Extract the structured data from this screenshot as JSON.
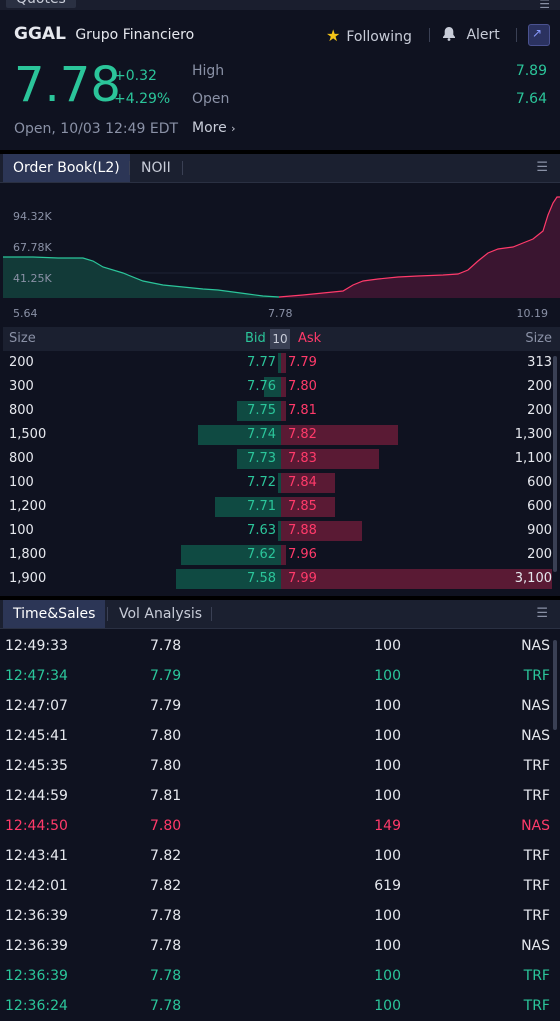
{
  "top_tab": "Quotes",
  "quote": {
    "ticker": "GGAL",
    "name": "Grupo Financiero",
    "following_label": "Following",
    "alert_label": "Alert",
    "price": "7.78",
    "change": "+0.32",
    "change_pct": "+4.29%",
    "status": "Open, 10/03 12:49 EDT",
    "high_label": "High",
    "high_value": "7.89",
    "open_label": "Open",
    "open_value": "7.64",
    "more_label": "More"
  },
  "order_book": {
    "tabs": [
      "Order Book(L2)",
      "NOII"
    ],
    "depth_chart": {
      "y_labels": [
        "94.32K",
        "67.78K",
        "41.25K"
      ],
      "x_labels": [
        "5.64",
        "7.78",
        "10.19"
      ]
    },
    "header": {
      "size_left": "Size",
      "bid": "Bid",
      "depth": "10",
      "ask": "Ask",
      "size_right": "Size"
    },
    "rows": [
      {
        "bid_size": "200",
        "bid": "7.77",
        "ask": "7.79",
        "ask_size": "313",
        "bid_frac": 0.02,
        "ask_frac": 0.02
      },
      {
        "bid_size": "300",
        "bid": "7.76",
        "ask": "7.80",
        "ask_size": "200",
        "bid_frac": 0.1,
        "ask_frac": 0.02
      },
      {
        "bid_size": "800",
        "bid": "7.75",
        "ask": "7.81",
        "ask_size": "200",
        "bid_frac": 0.26,
        "ask_frac": 0.02
      },
      {
        "bid_size": "1,500",
        "bid": "7.74",
        "ask": "7.82",
        "ask_size": "1,300",
        "bid_frac": 0.49,
        "ask_frac": 0.43
      },
      {
        "bid_size": "800",
        "bid": "7.73",
        "ask": "7.83",
        "ask_size": "1,100",
        "bid_frac": 0.26,
        "ask_frac": 0.36
      },
      {
        "bid_size": "100",
        "bid": "7.72",
        "ask": "7.84",
        "ask_size": "600",
        "bid_frac": 0.02,
        "ask_frac": 0.2
      },
      {
        "bid_size": "1,200",
        "bid": "7.71",
        "ask": "7.85",
        "ask_size": "600",
        "bid_frac": 0.39,
        "ask_frac": 0.2
      },
      {
        "bid_size": "100",
        "bid": "7.63",
        "ask": "7.88",
        "ask_size": "900",
        "bid_frac": 0.02,
        "ask_frac": 0.3
      },
      {
        "bid_size": "1,800",
        "bid": "7.62",
        "ask": "7.96",
        "ask_size": "200",
        "bid_frac": 0.59,
        "ask_frac": 0.02
      },
      {
        "bid_size": "1,900",
        "bid": "7.58",
        "ask": "7.99",
        "ask_size": "3,100",
        "bid_frac": 0.62,
        "ask_frac": 1.0
      }
    ]
  },
  "time_sales": {
    "tabs": [
      "Time&Sales",
      "Vol Analysis"
    ],
    "rows": [
      {
        "time": "12:49:33",
        "price": "7.78",
        "vol": "100",
        "exch": "NAS",
        "dir": "neutral"
      },
      {
        "time": "12:47:34",
        "price": "7.79",
        "vol": "100",
        "exch": "TRF",
        "dir": "up"
      },
      {
        "time": "12:47:07",
        "price": "7.79",
        "vol": "100",
        "exch": "NAS",
        "dir": "neutral"
      },
      {
        "time": "12:45:41",
        "price": "7.80",
        "vol": "100",
        "exch": "NAS",
        "dir": "neutral"
      },
      {
        "time": "12:45:35",
        "price": "7.80",
        "vol": "100",
        "exch": "TRF",
        "dir": "neutral"
      },
      {
        "time": "12:44:59",
        "price": "7.81",
        "vol": "100",
        "exch": "TRF",
        "dir": "neutral"
      },
      {
        "time": "12:44:50",
        "price": "7.80",
        "vol": "149",
        "exch": "NAS",
        "dir": "down"
      },
      {
        "time": "12:43:41",
        "price": "7.82",
        "vol": "100",
        "exch": "TRF",
        "dir": "neutral"
      },
      {
        "time": "12:42:01",
        "price": "7.82",
        "vol": "619",
        "exch": "TRF",
        "dir": "neutral"
      },
      {
        "time": "12:36:39",
        "price": "7.78",
        "vol": "100",
        "exch": "TRF",
        "dir": "neutral"
      },
      {
        "time": "12:36:39",
        "price": "7.78",
        "vol": "100",
        "exch": "NAS",
        "dir": "neutral"
      },
      {
        "time": "12:36:39",
        "price": "7.78",
        "vol": "100",
        "exch": "TRF",
        "dir": "up"
      },
      {
        "time": "12:36:24",
        "price": "7.78",
        "vol": "100",
        "exch": "TRF",
        "dir": "up"
      }
    ]
  },
  "colors": {
    "up": "#2bc59a",
    "down": "#ff3a6a",
    "background": "#0f1220"
  }
}
